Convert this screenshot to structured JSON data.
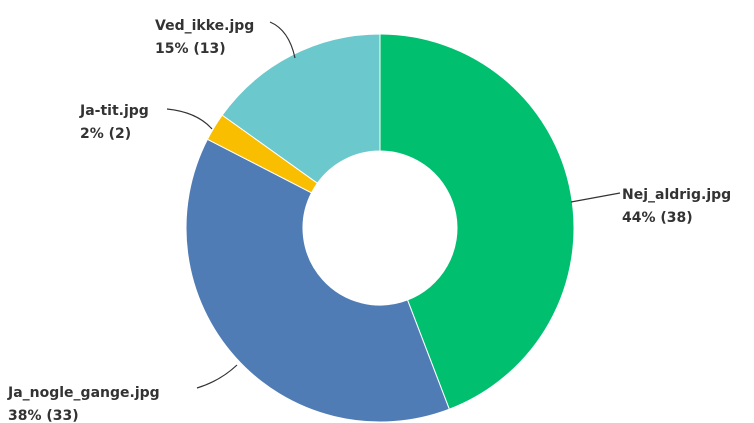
{
  "chart_data": {
    "type": "pie",
    "variant": "donut",
    "title": "",
    "start_angle_degrees": 0,
    "direction": "clockwise",
    "slices": [
      {
        "label": "Nej_aldrig.jpg",
        "percent_label": "44% (38)",
        "value": 38,
        "percent": 44,
        "color": "#00bf6f"
      },
      {
        "label": "Ja_nogle_gange.jpg",
        "percent_label": "38% (33)",
        "value": 33,
        "percent": 38,
        "color": "#507cb6"
      },
      {
        "label": "Ja-tit.jpg",
        "percent_label": "2% (2)",
        "value": 2,
        "percent": 2,
        "color": "#f9be00"
      },
      {
        "label": "Ved_ikke.jpg",
        "percent_label": "15% (13)",
        "value": 13,
        "percent": 15,
        "color": "#6bc8cd"
      }
    ]
  }
}
